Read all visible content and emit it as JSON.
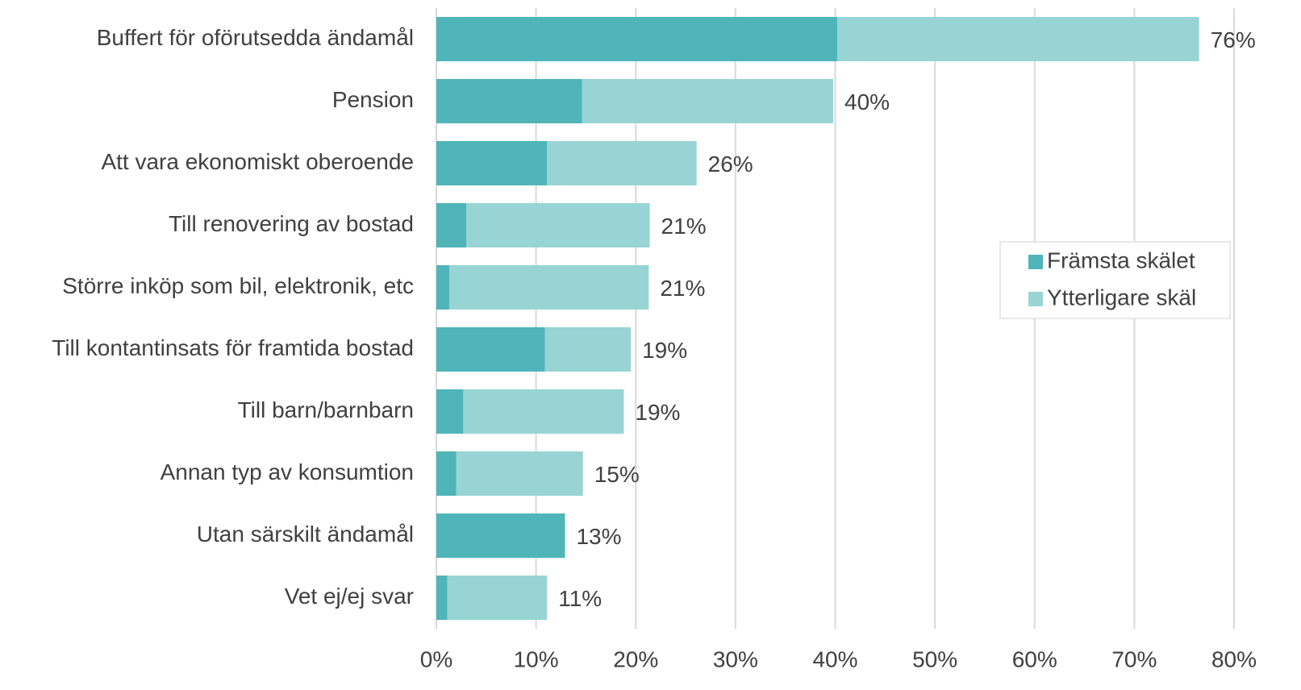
{
  "chart_data": {
    "type": "stacked_barh",
    "categories": [
      "Buffert för oförutsedda ändamål",
      "Pension",
      "Att vara ekonomiskt oberoende",
      "Till renovering av bostad",
      "Större inköp som bil, elektronik, etc",
      "Till kontantinsats för framtida bostad",
      "Till barn/barnbarn",
      "Annan typ av konsumtion",
      "Utan särskilt ändamål",
      "Vet ej/ej svar"
    ],
    "series": [
      {
        "name": "Främsta skälet",
        "color": "#4fb5b9",
        "values": [
          40.2,
          14.6,
          11.1,
          3.0,
          1.3,
          10.9,
          2.7,
          2.0,
          12.9,
          1.1
        ]
      },
      {
        "name": "Ytterligare skäl",
        "color": "#98d4d4",
        "values": [
          36.3,
          25.2,
          15.0,
          18.4,
          20.0,
          8.6,
          16.1,
          12.7,
          0,
          10.0
        ]
      }
    ],
    "total_labels": [
      "76%",
      "40%",
      "26%",
      "21%",
      "21%",
      "19%",
      "19%",
      "15%",
      "13%",
      "11%"
    ],
    "xlim": [
      0,
      80
    ],
    "xticks": [
      {
        "value": 0,
        "label": "0%"
      },
      {
        "value": 10,
        "label": "10%"
      },
      {
        "value": 20,
        "label": "20%"
      },
      {
        "value": 30,
        "label": "30%"
      },
      {
        "value": 40,
        "label": "40%"
      },
      {
        "value": 50,
        "label": "50%"
      },
      {
        "value": 60,
        "label": "60%"
      },
      {
        "value": 70,
        "label": "70%"
      },
      {
        "value": 80,
        "label": "80%"
      }
    ],
    "grid": true,
    "legend": "right"
  }
}
